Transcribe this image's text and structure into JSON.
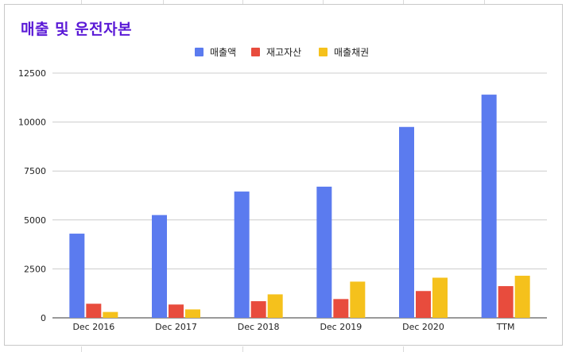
{
  "title": "매출 및 운전자본",
  "colors": {
    "title": "#5a19d6",
    "series": [
      "#5b7bef",
      "#e84c3d",
      "#f5c11c"
    ],
    "grid": "#cccccc",
    "axis": "#333333"
  },
  "chart_data": {
    "type": "bar",
    "title": "매출 및 운전자본",
    "categories": [
      "Dec 2016",
      "Dec 2017",
      "Dec 2018",
      "Dec 2019",
      "Dec 2020",
      "TTM"
    ],
    "series": [
      {
        "name": "매출액",
        "values": [
          4300,
          5250,
          6450,
          6700,
          9750,
          11400
        ]
      },
      {
        "name": "재고자산",
        "values": [
          720,
          680,
          850,
          960,
          1370,
          1620
        ]
      },
      {
        "name": "매출채권",
        "values": [
          300,
          430,
          1200,
          1850,
          2050,
          2150
        ]
      }
    ],
    "ylim": [
      0,
      12500
    ],
    "yticks": [
      "0",
      "2500",
      "5000",
      "7500",
      "10000",
      "12500"
    ],
    "ytick_values": [
      0,
      2500,
      5000,
      7500,
      10000,
      12500
    ],
    "grid": true,
    "legend": "top-center",
    "xlabel": "",
    "ylabel": ""
  }
}
